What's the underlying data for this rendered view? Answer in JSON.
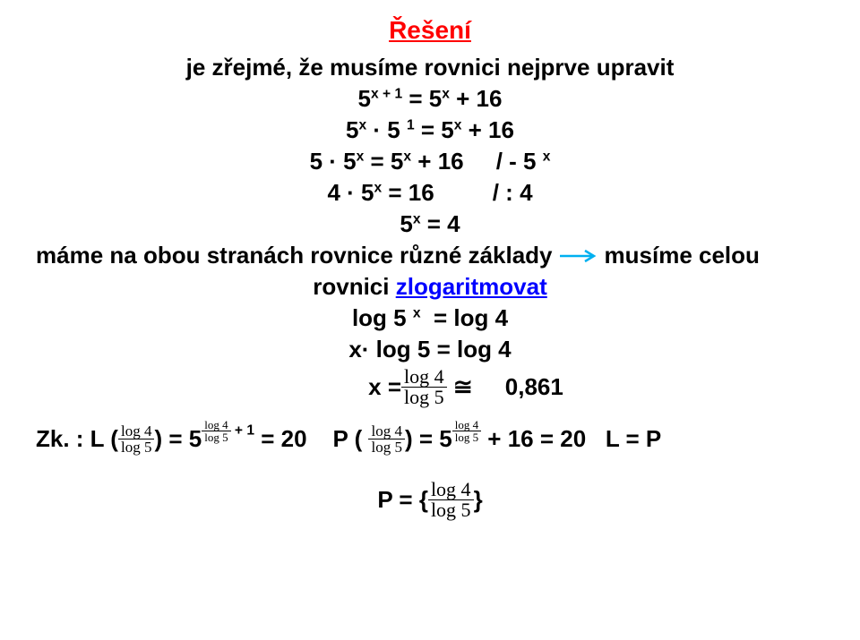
{
  "title": "Řešení",
  "l1": "je zřejmé, že musíme rovnici nejprve upravit",
  "l2_html": "5<sup>x + 1</sup> = 5<sup>x</sup> + 16",
  "l3_html": "5<sup>x</sup> · 5 <sup>1</sup> = 5<sup>x</sup> + 16",
  "l4_html": "5 · 5<sup>x</sup> = 5<sup>x</sup> + 16 &nbsp;&nbsp;&nbsp; / - 5 <sup>x</sup>",
  "l5_html": "4 · 5<sup>x</sup> = 16 &nbsp;&nbsp;&nbsp;&nbsp;&nbsp;&nbsp;&nbsp; / : 4",
  "l6_html": "5<sup>x</sup> = 4",
  "l7a": "máme na obou stranách rovnice různé základy",
  "l7b": "musíme  celou",
  "l8a": "rovnici ",
  "l8b": "zlogaritmovat",
  "l9_html": "log 5 <sup>x</sup>&nbsp; = log 4",
  "l10": "x· log 5 = log 4",
  "l11_pre": "x = ",
  "l11_post": " ≅     0,861",
  "zk_a": "Zk. : L ( ",
  "zk_b": " ) = 5 ",
  "zk_c": " = 20    P ( ",
  "zk_d": " ) = 5 ",
  "zk_e": " + 16 = 20   L = P",
  "exp_plus1": " + 1",
  "P_pre": "P = { ",
  "P_post": " }",
  "frac": {
    "num": "log 4",
    "den": "log 5"
  },
  "arrow_color": "#00b0f0"
}
